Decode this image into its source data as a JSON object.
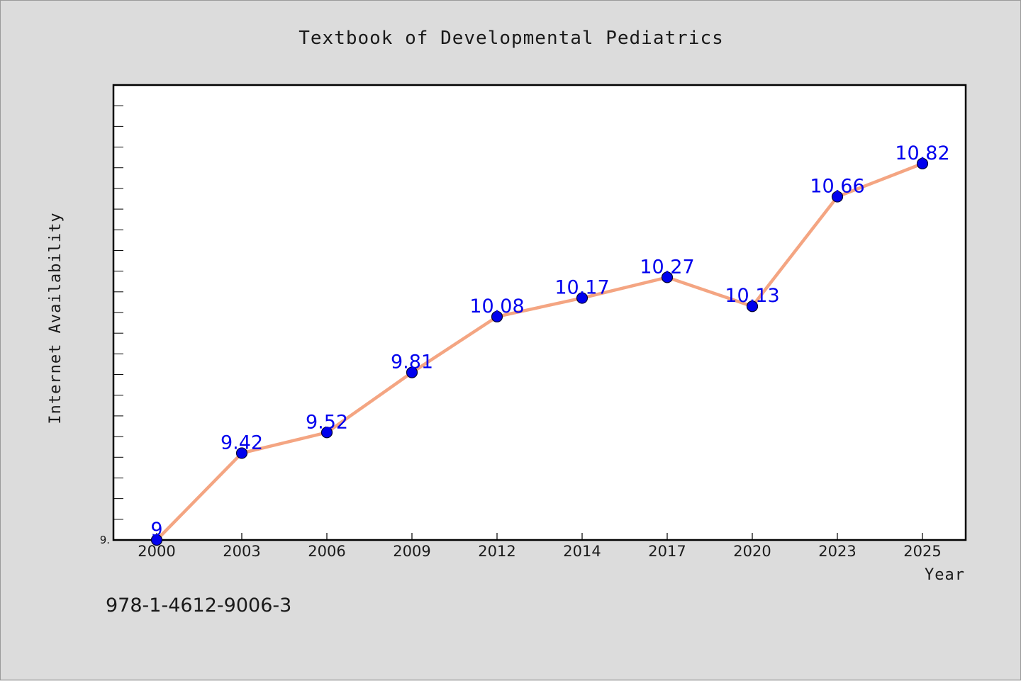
{
  "chart_data": {
    "type": "line",
    "title": "Textbook of Developmental Pediatrics",
    "xlabel": "Year",
    "ylabel": "Internet Availability",
    "categories": [
      "2000",
      "2003",
      "2006",
      "2009",
      "2012",
      "2014",
      "2017",
      "2020",
      "2023",
      "2025"
    ],
    "series": [
      {
        "values": [
          9,
          9.42,
          9.52,
          9.81,
          10.08,
          10.17,
          10.27,
          10.13,
          10.66,
          10.82
        ],
        "data_labels": [
          "9",
          "9.42",
          "9.52",
          "9.81",
          "10.08",
          "10.17",
          "10.27",
          "10.13",
          "10.66",
          "10.82"
        ]
      }
    ],
    "ylim": [
      9,
      11.2
    ],
    "ytick_labels": [
      "9."
    ],
    "grid": false,
    "legend": "none",
    "colors": {
      "line": "#f4a582",
      "marker": "#0000ee",
      "marker_edge": "#000033",
      "data_label": "#0000ee",
      "plot_background": "#ffffff",
      "figure_background": "#dcdcdc"
    }
  },
  "footer": {
    "isbn": "978-1-4612-9006-3"
  }
}
